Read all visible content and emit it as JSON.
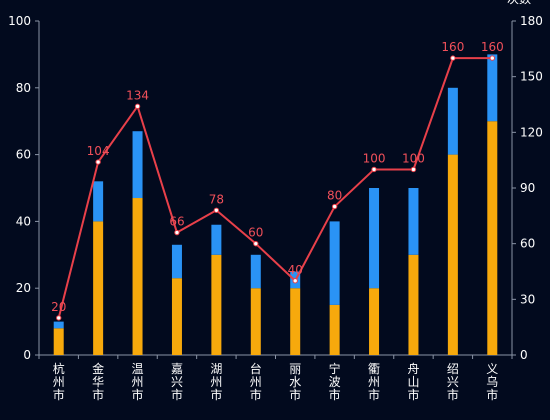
{
  "chart_data": {
    "type": "bar",
    "categories": [
      "杭州市",
      "金华市",
      "温州市",
      "嘉兴市",
      "湖州市",
      "台州市",
      "丽水市",
      "宁波市",
      "衢州市",
      "舟山市",
      "绍兴市",
      "义乌市"
    ],
    "series": [
      {
        "kind": "bar",
        "axis": "left",
        "stack": "total",
        "color": "#f7a90c",
        "values": [
          8,
          40,
          47,
          23,
          30,
          20,
          20,
          15,
          20,
          30,
          60,
          70
        ]
      },
      {
        "kind": "bar",
        "axis": "left",
        "stack": "total",
        "color": "#2a93f5",
        "values": [
          2,
          12,
          20,
          10,
          9,
          10,
          5,
          25,
          30,
          20,
          20,
          20
        ]
      },
      {
        "kind": "line",
        "axis": "right",
        "color": "#e8404a",
        "label_color": "#f0505a",
        "values": [
          20,
          104,
          134,
          66,
          78,
          60,
          40,
          80,
          100,
          100,
          160,
          160
        ]
      }
    ],
    "yleft": {
      "min": 0,
      "max": 100,
      "ticks": [
        0,
        20,
        40,
        60,
        80,
        100
      ],
      "label": ""
    },
    "yright": {
      "min": 0,
      "max": 180,
      "ticks": [
        0,
        30,
        60,
        90,
        120,
        150,
        180
      ],
      "label": "次数"
    },
    "grid": false,
    "legend": "none"
  },
  "colors": {
    "background": "#020a1e",
    "axis": "#8a94a6",
    "text": "#ffffff"
  }
}
